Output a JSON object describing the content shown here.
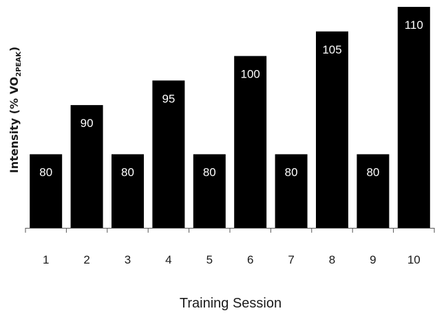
{
  "chart_data": {
    "type": "bar",
    "categories": [
      "1",
      "2",
      "3",
      "4",
      "5",
      "6",
      "7",
      "8",
      "9",
      "10"
    ],
    "values": [
      80,
      90,
      80,
      95,
      80,
      100,
      80,
      105,
      80,
      110
    ],
    "data_labels": [
      "80",
      "90",
      "80",
      "95",
      "80",
      "100",
      "80",
      "105",
      "80",
      "110"
    ],
    "xlabel": "Training Session",
    "ylabel": {
      "prefix": "Intensity (% VO",
      "subscript": "2PEAK",
      "suffix": ")"
    },
    "ylim": [
      65,
      110
    ],
    "grid": false,
    "legend": "none",
    "bar_color": "#000000",
    "label_color": "#ffffff"
  }
}
